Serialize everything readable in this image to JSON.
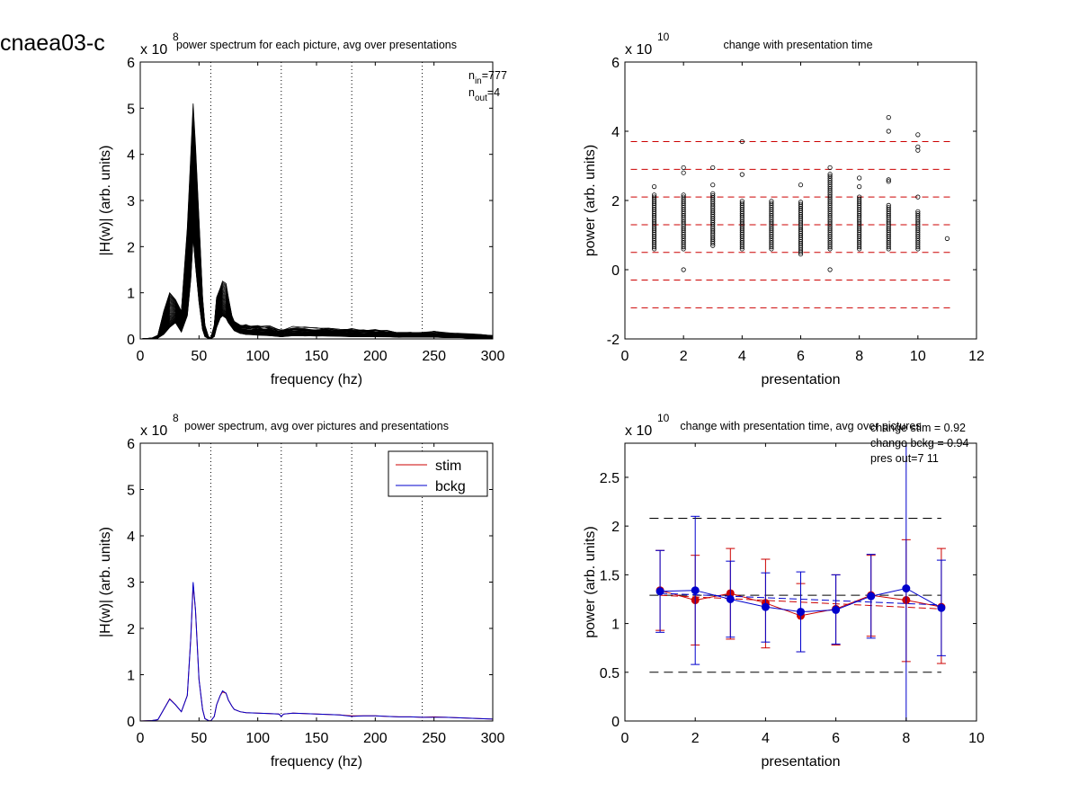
{
  "figure_id": "cnaea03-c",
  "colors": {
    "stim": "#cc0000",
    "bckg": "#0000cc",
    "threshold": "#cc0000",
    "black": "#000000"
  },
  "chart_data": [
    {
      "type": "line",
      "title": "power spectrum for each picture, avg over presentations",
      "xlabel": "frequency (hz)",
      "ylabel": "|H(w)| (arb. units)",
      "y_exponent": {
        "base": "x 10",
        "power": "8"
      },
      "xlim": [
        0,
        300
      ],
      "ylim": [
        0,
        6
      ],
      "xticks": [
        "0",
        "50",
        "100",
        "150",
        "200",
        "250",
        "300"
      ],
      "yticks": [
        "0",
        "1",
        "2",
        "3",
        "4",
        "5",
        "6"
      ],
      "vlines_dotted": [
        60,
        120,
        180,
        240,
        300
      ],
      "annotation": {
        "n_in_prefix": "n",
        "n_in_sub": "in",
        "n_in_value": "=777",
        "n_out_prefix": "n",
        "n_out_sub": "out",
        "n_out_value": "=4"
      },
      "series_count": 777,
      "x": [
        0,
        10,
        15,
        20,
        25,
        30,
        35,
        40,
        43,
        45,
        47,
        50,
        53,
        55,
        58,
        60,
        63,
        65,
        68,
        70,
        73,
        75,
        78,
        80,
        85,
        90,
        100,
        110,
        120,
        130,
        140,
        150,
        160,
        170,
        180,
        190,
        200,
        210,
        220,
        230,
        240,
        250,
        260,
        270,
        280,
        290,
        300
      ],
      "envelope_lower": [
        0,
        0,
        0.02,
        0.1,
        0.25,
        0.35,
        0.15,
        0.5,
        1.3,
        2.2,
        1.6,
        0.8,
        0.2,
        0.05,
        0.01,
        0,
        0.05,
        0.25,
        0.45,
        0.5,
        0.45,
        0.35,
        0.25,
        0.18,
        0.12,
        0.1,
        0.08,
        0.08,
        0.05,
        0.07,
        0.07,
        0.07,
        0.06,
        0.06,
        0.05,
        0.05,
        0.05,
        0.05,
        0.04,
        0.04,
        0.04,
        0.04,
        0.03,
        0.03,
        0.02,
        0.02,
        0.02
      ],
      "envelope_mean": [
        0,
        0.01,
        0.04,
        0.3,
        0.5,
        0.4,
        0.25,
        1.2,
        2.3,
        3.2,
        2.5,
        1.4,
        0.4,
        0.12,
        0.02,
        0,
        0.12,
        0.4,
        0.58,
        0.65,
        0.6,
        0.45,
        0.32,
        0.24,
        0.18,
        0.16,
        0.15,
        0.14,
        0.1,
        0.14,
        0.14,
        0.13,
        0.12,
        0.11,
        0.1,
        0.1,
        0.1,
        0.09,
        0.08,
        0.08,
        0.07,
        0.08,
        0.07,
        0.06,
        0.05,
        0.05,
        0.04
      ],
      "envelope_upper": [
        0,
        0.02,
        0.08,
        0.6,
        1.0,
        0.85,
        0.6,
        2.4,
        4.0,
        5.1,
        4.2,
        2.6,
        0.9,
        0.3,
        0.05,
        0.02,
        0.3,
        0.9,
        1.1,
        1.25,
        1.2,
        0.9,
        0.5,
        0.38,
        0.3,
        0.3,
        0.26,
        0.25,
        0.18,
        0.24,
        0.24,
        0.22,
        0.22,
        0.2,
        0.2,
        0.19,
        0.19,
        0.17,
        0.15,
        0.14,
        0.13,
        0.15,
        0.13,
        0.12,
        0.1,
        0.09,
        0.07
      ]
    },
    {
      "type": "scatter",
      "title": "change with presentation time",
      "xlabel": "presentation",
      "ylabel": "power (arb. units)",
      "y_exponent": {
        "base": "x 10",
        "power": "10"
      },
      "xlim": [
        0,
        12
      ],
      "ylim": [
        -2,
        6
      ],
      "xticks": [
        "0",
        "2",
        "4",
        "6",
        "8",
        "10",
        "12"
      ],
      "yticks": [
        "-2",
        "0",
        "2",
        "4",
        "6"
      ],
      "hlines_dashed": [
        3.7,
        2.9,
        2.1,
        1.3,
        0.5,
        -0.3,
        -1.1
      ],
      "columns": [
        {
          "x": 1,
          "min": 0.6,
          "max": 2.2,
          "outliers": [
            2.4
          ]
        },
        {
          "x": 2,
          "min": 0.6,
          "max": 2.2,
          "outliers": [
            0,
            2.8,
            2.95
          ]
        },
        {
          "x": 3,
          "min": 0.7,
          "max": 2.2,
          "outliers": [
            2.45,
            2.95
          ]
        },
        {
          "x": 4,
          "min": 0.6,
          "max": 2.0,
          "outliers": [
            2.75,
            3.7
          ]
        },
        {
          "x": 5,
          "min": 0.6,
          "max": 2.0,
          "outliers": []
        },
        {
          "x": 6,
          "min": 0.45,
          "max": 2.0,
          "outliers": [
            2.45
          ]
        },
        {
          "x": 7,
          "min": 0.6,
          "max": 2.8,
          "outliers": [
            0,
            2.95
          ]
        },
        {
          "x": 8,
          "min": 0.6,
          "max": 2.1,
          "outliers": [
            2.4,
            2.65
          ]
        },
        {
          "x": 9,
          "min": 0.6,
          "max": 1.9,
          "outliers": [
            2.55,
            2.6,
            4.0,
            4.4
          ]
        },
        {
          "x": 10,
          "min": 0.6,
          "max": 1.7,
          "outliers": [
            2.1,
            3.45,
            3.55,
            3.9
          ]
        },
        {
          "x": 11,
          "min": 0.9,
          "max": 0.9,
          "outliers": []
        }
      ]
    },
    {
      "type": "line",
      "title": "power spectrum, avg over pictures and presentations",
      "xlabel": "frequency (hz)",
      "ylabel": "|H(w)| (arb. units)",
      "y_exponent": {
        "base": "x 10",
        "power": "8"
      },
      "xlim": [
        0,
        300
      ],
      "ylim": [
        0,
        6
      ],
      "xticks": [
        "0",
        "50",
        "100",
        "150",
        "200",
        "250",
        "300"
      ],
      "yticks": [
        "0",
        "1",
        "2",
        "3",
        "4",
        "5",
        "6"
      ],
      "vlines_dotted": [
        60,
        120,
        180,
        240,
        300
      ],
      "legend": {
        "position": "top-right",
        "entries": [
          "stim",
          "bckg"
        ]
      },
      "x": [
        0,
        10,
        15,
        20,
        25,
        30,
        35,
        40,
        43,
        45,
        47,
        50,
        53,
        55,
        58,
        60,
        63,
        65,
        68,
        70,
        73,
        75,
        78,
        80,
        85,
        90,
        100,
        110,
        118,
        120,
        122,
        130,
        140,
        150,
        160,
        170,
        180,
        190,
        200,
        210,
        220,
        230,
        240,
        250,
        260,
        270,
        280,
        290,
        300
      ],
      "series": [
        {
          "name": "stim",
          "values": [
            0,
            0.01,
            0.03,
            0.25,
            0.48,
            0.35,
            0.2,
            0.55,
            1.8,
            2.95,
            2.4,
            0.9,
            0.25,
            0.05,
            0.01,
            0,
            0.1,
            0.35,
            0.55,
            0.63,
            0.6,
            0.45,
            0.32,
            0.25,
            0.2,
            0.18,
            0.17,
            0.16,
            0.15,
            0.1,
            0.15,
            0.17,
            0.16,
            0.15,
            0.14,
            0.13,
            0.11,
            0.11,
            0.11,
            0.1,
            0.09,
            0.09,
            0.08,
            0.09,
            0.08,
            0.07,
            0.06,
            0.05,
            0.04
          ]
        },
        {
          "name": "bckg",
          "values": [
            0,
            0.01,
            0.03,
            0.25,
            0.47,
            0.35,
            0.2,
            0.55,
            1.8,
            3.0,
            2.4,
            0.9,
            0.25,
            0.05,
            0.01,
            0,
            0.1,
            0.35,
            0.55,
            0.65,
            0.6,
            0.45,
            0.32,
            0.25,
            0.2,
            0.18,
            0.17,
            0.16,
            0.15,
            0.1,
            0.15,
            0.17,
            0.16,
            0.15,
            0.14,
            0.13,
            0.1,
            0.11,
            0.11,
            0.1,
            0.09,
            0.09,
            0.08,
            0.08,
            0.08,
            0.07,
            0.06,
            0.05,
            0.04
          ]
        }
      ]
    },
    {
      "type": "line",
      "title": "change with presentation time, avg over pictures",
      "xlabel": "presentation",
      "ylabel": "power (arb. units)",
      "y_exponent": {
        "base": "x 10",
        "power": "10"
      },
      "xlim": [
        0,
        10
      ],
      "ylim": [
        0,
        2.85
      ],
      "xticks": [
        "0",
        "2",
        "4",
        "6",
        "8",
        "10"
      ],
      "yticks": [
        "0",
        "0.5",
        "1",
        "1.5",
        "2",
        "2.5"
      ],
      "hlines_dashed": [
        2.08,
        1.29,
        0.5
      ],
      "annotations": [
        "change stim = 0.92",
        "change bckg = 0.94",
        "pres out=7 11"
      ],
      "x": [
        1,
        2,
        3,
        4,
        5,
        6,
        7,
        8,
        9
      ],
      "series": [
        {
          "name": "stim",
          "values": [
            1.34,
            1.24,
            1.31,
            1.21,
            1.08,
            1.15,
            1.29,
            1.24,
            1.17
          ],
          "err_low": [
            0.93,
            0.78,
            0.84,
            0.75,
            0.71,
            0.78,
            0.87,
            0.61,
            0.59
          ],
          "err_high": [
            1.75,
            1.7,
            1.77,
            1.66,
            1.41,
            1.5,
            1.7,
            1.86,
            1.77
          ],
          "trend": [
            1.29,
            1.15
          ]
        },
        {
          "name": "bckg",
          "values": [
            1.33,
            1.34,
            1.25,
            1.17,
            1.12,
            1.14,
            1.28,
            1.36,
            1.16
          ],
          "err_low": [
            0.91,
            0.58,
            0.86,
            0.81,
            0.71,
            0.79,
            0.85,
            0,
            0.67
          ],
          "err_high": [
            1.75,
            2.1,
            1.64,
            1.52,
            1.53,
            1.5,
            1.71,
            2.85,
            1.65
          ],
          "trend": [
            1.31,
            1.19
          ]
        }
      ]
    }
  ]
}
